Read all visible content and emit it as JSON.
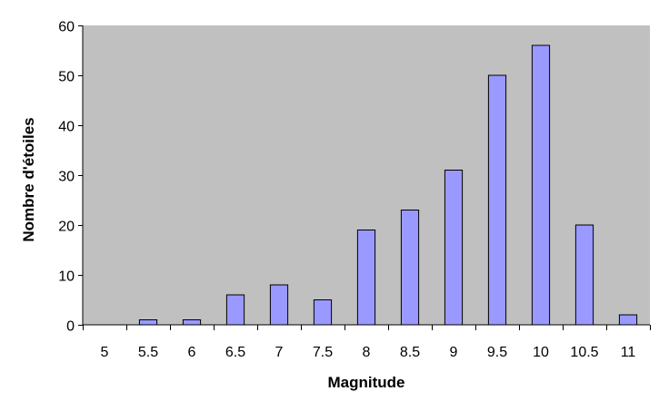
{
  "chart_data": {
    "type": "bar",
    "categories": [
      "5",
      "5.5",
      "6",
      "6.5",
      "7",
      "7.5",
      "8",
      "8.5",
      "9",
      "9.5",
      "10",
      "10.5",
      "11"
    ],
    "values": [
      0,
      1,
      1,
      6,
      8,
      5,
      19,
      23,
      31,
      50,
      56,
      20,
      2
    ],
    "title": "",
    "xlabel": "Magnitude",
    "ylabel": "Nombre d'étoiles",
    "ylim": [
      0,
      60
    ],
    "yticks": [
      "0",
      "10",
      "20",
      "30",
      "40",
      "50",
      "60"
    ],
    "grid": false,
    "legend": "none",
    "colors": {
      "plot_background": "#c0c0c0",
      "bar_fill": "#9999ff",
      "bar_stroke": "#000000",
      "axis": "#000000"
    }
  }
}
